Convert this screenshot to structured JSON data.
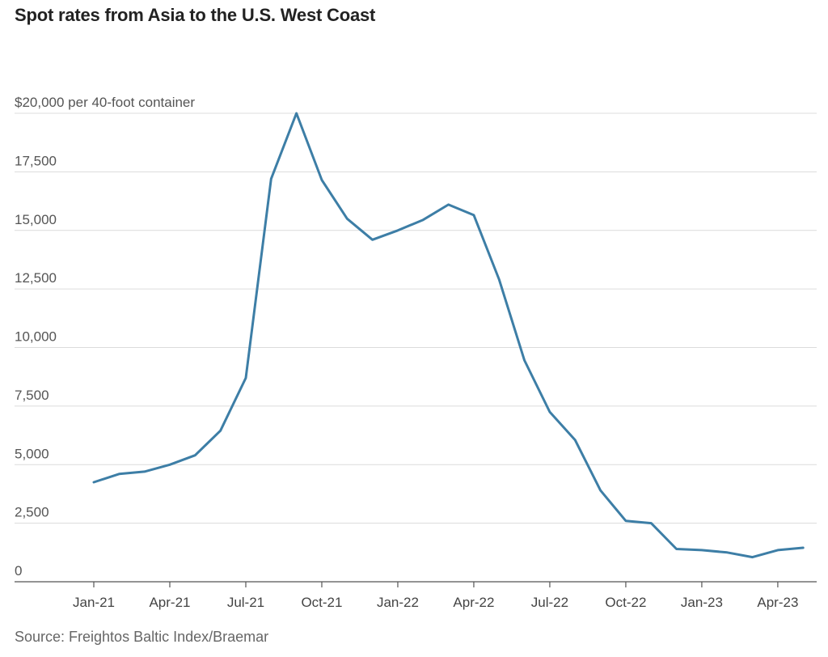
{
  "header": {
    "title": "Spot rates from Asia to the U.S. West Coast"
  },
  "footer": {
    "source": "Source: Freightos Baltic Index/Braemar"
  },
  "chart_data": {
    "type": "line",
    "title": "Spot rates from Asia to the U.S. West Coast",
    "xlabel": "",
    "ylabel": "$20,000 per 40-foot container",
    "ylim": [
      0,
      20000
    ],
    "grid": true,
    "line_color": "#3d7ea6",
    "y_ticks": [
      {
        "value": 0,
        "label": "0"
      },
      {
        "value": 2500,
        "label": "2,500"
      },
      {
        "value": 5000,
        "label": "5,000"
      },
      {
        "value": 7500,
        "label": "7,500"
      },
      {
        "value": 10000,
        "label": "10,000"
      },
      {
        "value": 12500,
        "label": "12,500"
      },
      {
        "value": 15000,
        "label": "15,000"
      },
      {
        "value": 17500,
        "label": "17,500"
      },
      {
        "value": 20000,
        "label": "$20,000 per 40-foot container"
      }
    ],
    "x_ticks": [
      {
        "value": "2021-01",
        "label": "Jan-21"
      },
      {
        "value": "2021-04",
        "label": "Apr-21"
      },
      {
        "value": "2021-07",
        "label": "Jul-21"
      },
      {
        "value": "2021-10",
        "label": "Oct-21"
      },
      {
        "value": "2022-01",
        "label": "Jan-22"
      },
      {
        "value": "2022-04",
        "label": "Apr-22"
      },
      {
        "value": "2022-07",
        "label": "Jul-22"
      },
      {
        "value": "2022-10",
        "label": "Oct-22"
      },
      {
        "value": "2023-01",
        "label": "Jan-23"
      },
      {
        "value": "2023-04",
        "label": "Apr-23"
      }
    ],
    "series": [
      {
        "x": [
          "2021-01",
          "2021-02",
          "2021-03",
          "2021-04",
          "2021-05",
          "2021-06",
          "2021-07",
          "2021-08",
          "2021-09",
          "2021-10",
          "2021-11",
          "2021-12",
          "2022-01",
          "2022-02",
          "2022-03",
          "2022-04",
          "2022-05",
          "2022-06",
          "2022-07",
          "2022-08",
          "2022-09",
          "2022-10",
          "2022-11",
          "2022-12",
          "2023-01",
          "2023-02",
          "2023-03",
          "2023-04",
          "2023-05"
        ],
        "values": [
          4250,
          4600,
          4700,
          5000,
          5400,
          6450,
          8700,
          17200,
          20000,
          17150,
          15500,
          14600,
          15000,
          15450,
          16100,
          15650,
          12900,
          9450,
          7250,
          6050,
          3900,
          2600,
          2500,
          1400,
          1350,
          1250,
          1050,
          1350,
          1450
        ]
      }
    ]
  }
}
